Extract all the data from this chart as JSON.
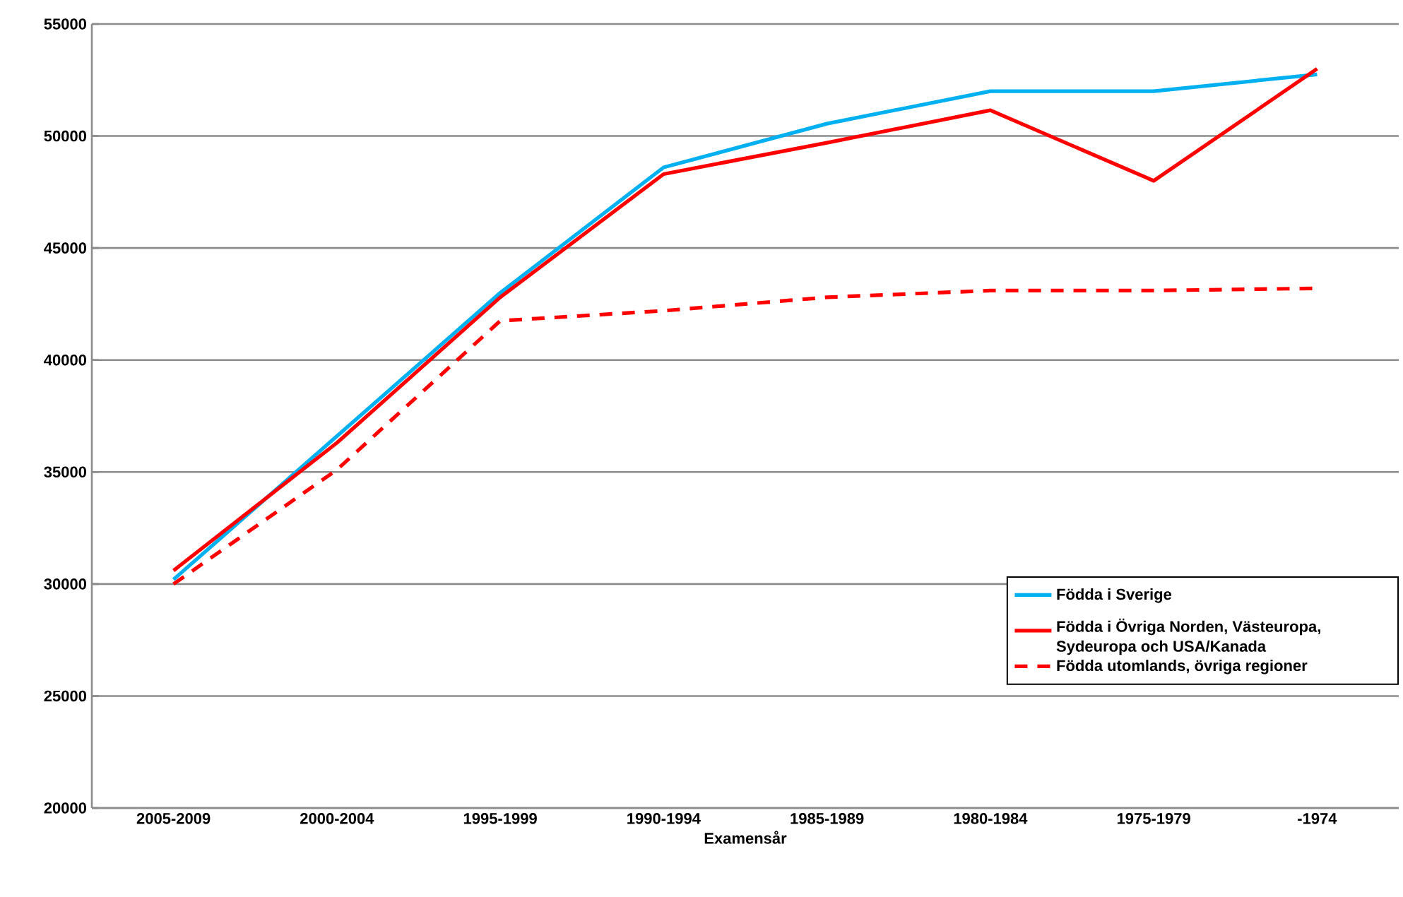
{
  "chart_data": {
    "type": "line",
    "xlabel": "Examensår",
    "categories": [
      "2005-2009",
      "2000-2004",
      "1995-1999",
      "1990-1994",
      "1985-1989",
      "1980-1984",
      "1975-1979",
      "-1974"
    ],
    "series": [
      {
        "name": "Födda i Sverige",
        "color": "#00b0f0",
        "line_style": "solid",
        "values": [
          30200,
          36600,
          43000,
          48600,
          50550,
          52000,
          52000,
          52750
        ]
      },
      {
        "name": "Födda i Övriga Norden, Västeuropa, Sydeuropa och USA/Kanada",
        "color": "#ff0000",
        "line_style": "solid",
        "values": [
          30600,
          36300,
          42800,
          48300,
          49700,
          51150,
          48000,
          53000
        ]
      },
      {
        "name": "Födda utomlands, övriga regioner",
        "color": "#ff0000",
        "line_style": "dashed",
        "values": [
          30000,
          35100,
          41750,
          42200,
          42800,
          43100,
          43100,
          43200
        ]
      }
    ],
    "ylim": [
      20000,
      55000
    ],
    "yticks": [
      20000,
      25000,
      30000,
      35000,
      40000,
      45000,
      50000,
      55000
    ],
    "grid": "y",
    "legend": "right"
  }
}
